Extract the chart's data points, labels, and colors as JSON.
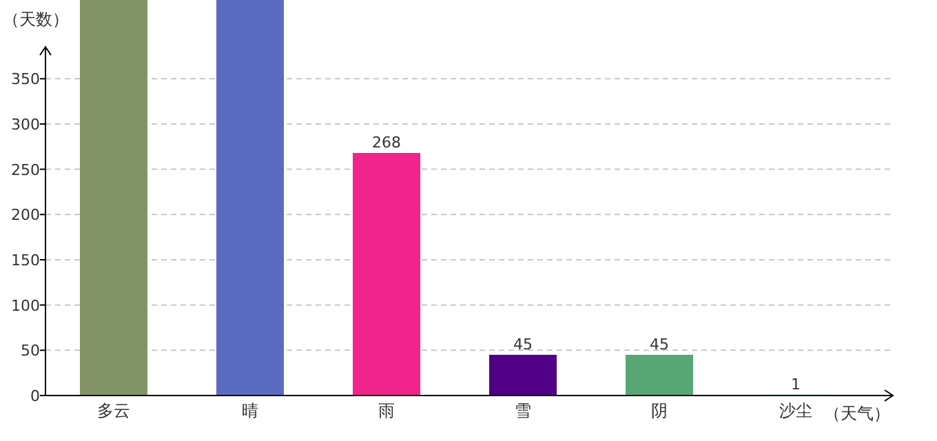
{
  "chart_data": {
    "type": "bar",
    "xlabel": "（天气）",
    "ylabel": "（天数）",
    "categories": [
      "多云",
      "晴",
      "雨",
      "雪",
      "阴",
      "沙尘"
    ],
    "values": [
      437,
      437,
      268,
      45,
      45,
      1
    ],
    "value_labels": [
      null,
      null,
      "268",
      "45",
      "45",
      "1"
    ],
    "colors": [
      "#829465",
      "#5b6bc0",
      "#ef248c",
      "#4f0084",
      "#59a774",
      "#6fe0e0"
    ],
    "ylim": [
      0,
      437
    ],
    "yticks": [
      0,
      50,
      100,
      150,
      200,
      250,
      300,
      350
    ],
    "grid": "y"
  }
}
